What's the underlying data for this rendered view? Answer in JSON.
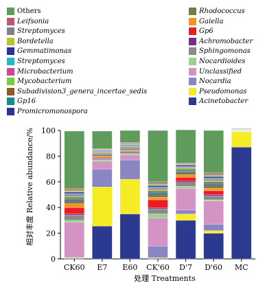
{
  "chart_data": {
    "type": "bar",
    "stacked": true,
    "title": "",
    "xlabel": "处理 Treatments",
    "ylabel": "相对丰度 Relative abundance/%",
    "ylim": [
      0,
      100
    ],
    "yticks": [
      0,
      20,
      40,
      60,
      80,
      100
    ],
    "grid": false,
    "legend_position": "top",
    "categories": [
      "CK60",
      "E7",
      "E60",
      "CK'60",
      "D'7",
      "D'60",
      "MC"
    ],
    "series": [
      {
        "name": "Acinetobacter",
        "color": "#2b3990",
        "values": [
          0.5,
          25.5,
          35,
          0.5,
          30,
          20,
          87
        ]
      },
      {
        "name": "Pseudomonas",
        "color": "#f5ec23",
        "values": [
          0.5,
          30.5,
          27,
          0.5,
          5,
          2,
          12
        ]
      },
      {
        "name": "Nocardia",
        "color": "#8c85c4",
        "values": [
          0.5,
          14,
          15,
          9,
          3,
          5,
          0.2
        ]
      },
      {
        "name": "Unclassified",
        "color": "#d393c5",
        "values": [
          27,
          6,
          4,
          22,
          17,
          18,
          0.2
        ]
      },
      {
        "name": "Nocardioides",
        "color": "#9bd38b",
        "values": [
          1.5,
          1,
          1,
          3,
          1.5,
          1,
          0.1
        ]
      },
      {
        "name": "Sphingomonas",
        "color": "#8a8a8a",
        "values": [
          4,
          1,
          1,
          4,
          3,
          3,
          0.1
        ]
      },
      {
        "name": "Achromobacter",
        "color": "#7b2c87",
        "values": [
          1,
          0.5,
          0.5,
          1,
          1,
          1,
          0.1
        ]
      },
      {
        "name": "Gp6",
        "color": "#ed1c24",
        "values": [
          5,
          0.5,
          0.5,
          6,
          3,
          3,
          0.1
        ]
      },
      {
        "name": "Gaiella",
        "color": "#f7941d",
        "values": [
          3,
          1,
          0.5,
          2,
          2,
          2,
          0.1
        ]
      },
      {
        "name": "Rhodococcus",
        "color": "#7b7a3c",
        "values": [
          2,
          1,
          1,
          2,
          2,
          2,
          0.1
        ]
      },
      {
        "name": "Promicromonospora",
        "color": "#2e3192",
        "values": [
          1,
          0.5,
          0.5,
          1,
          0.5,
          1,
          0.1
        ]
      },
      {
        "name": "Gp16",
        "color": "#1c8a86",
        "values": [
          1,
          0.5,
          0.5,
          1,
          1,
          1,
          0.1
        ]
      },
      {
        "name": "Subadivision3_genera_incertae_sedis",
        "color": "#8b5a2b",
        "values": [
          1,
          0.5,
          0.5,
          1,
          1,
          1,
          0.1
        ]
      },
      {
        "name": "Mycobacterium",
        "color": "#7ac943",
        "values": [
          1,
          0.5,
          0.5,
          1,
          1,
          1,
          0.1
        ]
      },
      {
        "name": "Microbacterium",
        "color": "#c54a97",
        "values": [
          1,
          0.5,
          0.5,
          1,
          0.5,
          1,
          0.1
        ]
      },
      {
        "name": "Streptomyces",
        "color": "#29b6c4",
        "values": [
          1,
          0.5,
          0.5,
          1,
          0.5,
          1,
          0.1
        ]
      },
      {
        "name": "Gemmatimonas",
        "color": "#2e3192",
        "values": [
          1,
          0.5,
          0.5,
          1,
          1,
          1,
          0.1
        ]
      },
      {
        "name": "Bordetella",
        "color": "#b5c334",
        "values": [
          1,
          0.5,
          0.5,
          1,
          0.5,
          1,
          0.1
        ]
      },
      {
        "name": "Streptomyces",
        "color": "#808285",
        "values": [
          1,
          0.5,
          0.5,
          1,
          0.5,
          1,
          0.1
        ]
      },
      {
        "name": "Leifsonia",
        "color": "#b85b6e",
        "values": [
          1,
          0.5,
          0.5,
          1,
          0.5,
          1,
          0.1
        ]
      },
      {
        "name": "Others",
        "color": "#5f9c5b",
        "values": [
          44.5,
          13.5,
          9.5,
          40,
          26,
          33,
          0.4
        ]
      }
    ],
    "legend_left": [
      {
        "name": "Others",
        "color": "#5f9c5b",
        "italic": false
      },
      {
        "name": "Leifsonia",
        "color": "#b85b6e",
        "italic": true
      },
      {
        "name": "Streptomyces",
        "color": "#808285",
        "italic": true
      },
      {
        "name": "Bordetella",
        "color": "#b5c334",
        "italic": true
      },
      {
        "name": "Gemmatimonas",
        "color": "#2e3192",
        "italic": true
      },
      {
        "name": "Streptomyces",
        "color": "#29b6c4",
        "italic": true
      },
      {
        "name": "Microbacterium",
        "color": "#c54a97",
        "italic": true
      },
      {
        "name": "Mycobacterium",
        "color": "#7ac943",
        "italic": true
      },
      {
        "name": "Subadivision3_genera_incertae_sedis",
        "color": "#8b5a2b",
        "italic": true
      },
      {
        "name": "Gp16",
        "color": "#1c8a86",
        "italic": true
      },
      {
        "name": "Promicromonospora",
        "color": "#2e3192",
        "italic": true
      }
    ],
    "legend_right": [
      {
        "name": "Rhodococcus",
        "color": "#7b7a3c",
        "italic": true
      },
      {
        "name": "Gaiella",
        "color": "#f7941d",
        "italic": true
      },
      {
        "name": "Gp6",
        "color": "#ed1c24",
        "italic": true
      },
      {
        "name": "Achromobacter",
        "color": "#7b2c87",
        "italic": true
      },
      {
        "name": "Sphingomonas",
        "color": "#8a8a8a",
        "italic": true
      },
      {
        "name": "Nocardioides",
        "color": "#9bd38b",
        "italic": true
      },
      {
        "name": "Unclassified",
        "color": "#d393c5",
        "italic": true
      },
      {
        "name": "Nocardia",
        "color": "#8c85c4",
        "italic": true
      },
      {
        "name": "Pseudomonas",
        "color": "#f5ec23",
        "italic": true
      },
      {
        "name": "Acinetobacter",
        "color": "#2b3990",
        "italic": true
      }
    ]
  }
}
